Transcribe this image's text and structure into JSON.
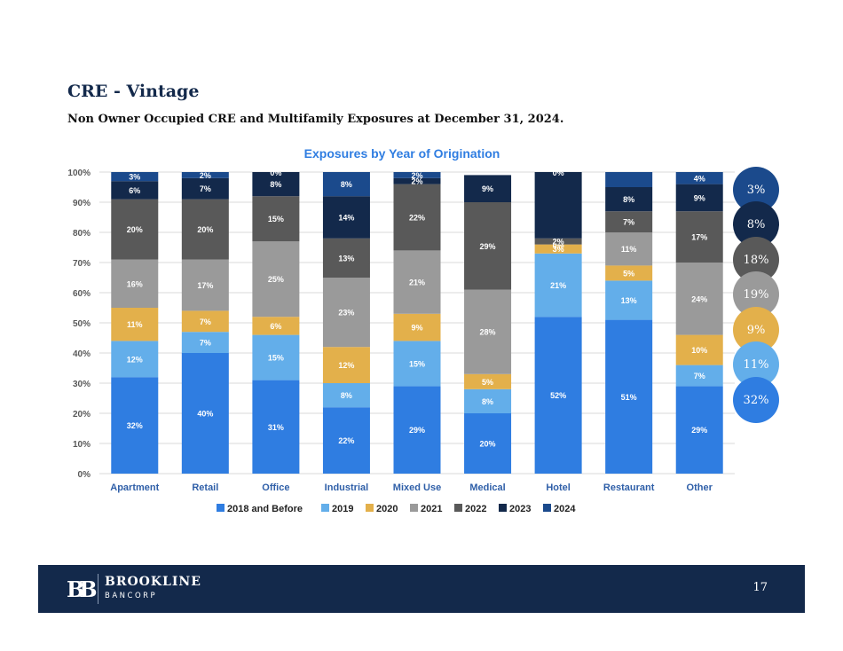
{
  "header": {
    "title": "CRE - Vintage",
    "subtitle": "Non Owner Occupied CRE and Multifamily Exposures at December 31, 2024."
  },
  "chart_data": {
    "type": "bar",
    "stacked": true,
    "title": "Exposures by Year of Origination",
    "ylim": [
      0,
      100
    ],
    "yticks": [
      "0%",
      "10%",
      "20%",
      "30%",
      "40%",
      "50%",
      "60%",
      "70%",
      "80%",
      "90%",
      "100%"
    ],
    "categories": [
      "Apartment",
      "Retail",
      "Office",
      "Industrial",
      "Mixed Use",
      "Medical",
      "Hotel",
      "Restaurant",
      "Other"
    ],
    "series": [
      {
        "name": "2018 and Before",
        "color": "#2f7de1",
        "values": [
          32,
          40,
          31,
          22,
          29,
          20,
          52,
          51,
          29
        ]
      },
      {
        "name": "2019",
        "color": "#63aeea",
        "values": [
          12,
          7,
          15,
          8,
          15,
          8,
          21,
          13,
          7
        ]
      },
      {
        "name": "2020",
        "color": "#e3b04b",
        "values": [
          11,
          7,
          6,
          12,
          9,
          5,
          3,
          5,
          10
        ]
      },
      {
        "name": "2021",
        "color": "#9a9a9a",
        "values": [
          16,
          17,
          25,
          23,
          21,
          28,
          0,
          11,
          24
        ]
      },
      {
        "name": "2022",
        "color": "#595959",
        "values": [
          20,
          20,
          15,
          13,
          22,
          29,
          2,
          7,
          17
        ]
      },
      {
        "name": "2023",
        "color": "#13294b",
        "values": [
          6,
          7,
          8,
          14,
          2,
          9,
          22,
          8,
          9
        ]
      },
      {
        "name": "2024",
        "color": "#1b4a8c",
        "values": [
          3,
          2,
          0,
          8,
          2,
          0,
          0,
          5,
          4
        ]
      }
    ],
    "labels": [
      [
        "32%",
        "40%",
        "31%",
        "22%",
        "29%",
        "20%",
        "52%",
        "51%",
        "29%"
      ],
      [
        "12%",
        "7%",
        "15%",
        "8%",
        "15%",
        "8%",
        "21%",
        "13%",
        "7%"
      ],
      [
        "11%",
        "7%",
        "6%",
        "12%",
        "9%",
        "5%",
        "3%",
        "5%",
        "10%"
      ],
      [
        "16%",
        "17%",
        "25%",
        "23%",
        "21%",
        "28%",
        "0%",
        "11%",
        "24%"
      ],
      [
        "20%",
        "20%",
        "15%",
        "13%",
        "22%",
        "29%",
        "2%",
        "7%",
        "17%"
      ],
      [
        "6%",
        "7%",
        "8%",
        "14%",
        "2%",
        "9%",
        "",
        "8%",
        "9%"
      ],
      [
        "3%",
        "2%",
        "0%",
        "8%",
        "2%",
        "",
        "0%",
        "",
        "4%"
      ]
    ],
    "legend_position": "bottom"
  },
  "totals": [
    {
      "label": "3%",
      "color": "#1b4a8c"
    },
    {
      "label": "8%",
      "color": "#13294b"
    },
    {
      "label": "18%",
      "color": "#595959"
    },
    {
      "label": "19%",
      "color": "#9a9a9a"
    },
    {
      "label": "9%",
      "color": "#e3b04b"
    },
    {
      "label": "11%",
      "color": "#63aeea"
    },
    {
      "label": "32%",
      "color": "#2f7de1"
    }
  ],
  "footer": {
    "logo_mark": "BB",
    "brand": "BROOKLINE",
    "brand_sub": "BANCORP",
    "page_number": "17"
  }
}
